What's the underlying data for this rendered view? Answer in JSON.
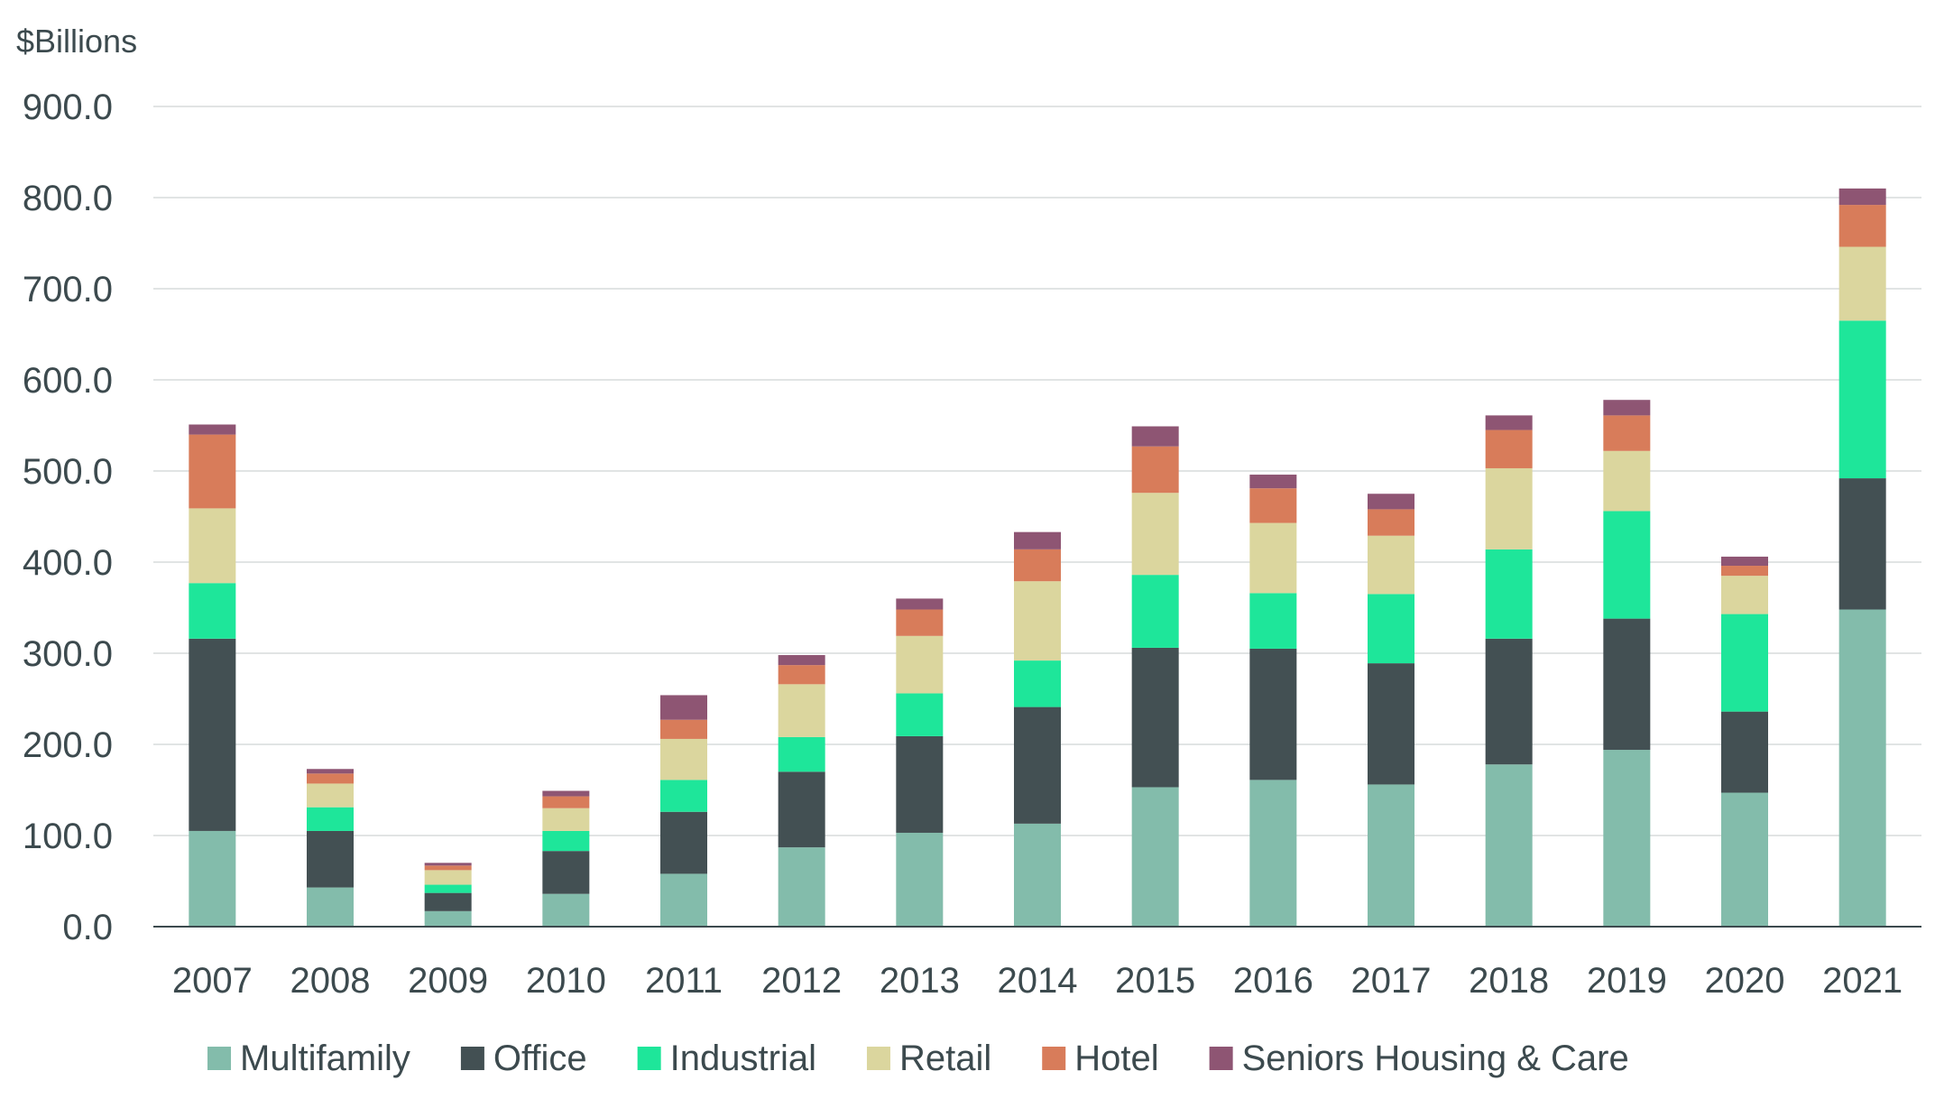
{
  "chart_data": {
    "type": "bar",
    "stacked": true,
    "title": "",
    "xlabel": "",
    "ylabel": "$Billions",
    "ylim": [
      0,
      900
    ],
    "yticks": [
      "0.0",
      "100.0",
      "200.0",
      "300.0",
      "400.0",
      "500.0",
      "600.0",
      "700.0",
      "800.0",
      "900.0"
    ],
    "grid": true,
    "legend_position": "bottom",
    "categories": [
      "2007",
      "2008",
      "2009",
      "2010",
      "2011",
      "2012",
      "2013",
      "2014",
      "2015",
      "2016",
      "2017",
      "2018",
      "2019",
      "2020",
      "2021"
    ],
    "series": [
      {
        "name": "Multifamily",
        "color": "#83bcab",
        "values": [
          105,
          43,
          17,
          36,
          58,
          87,
          103,
          113,
          153,
          161,
          156,
          178,
          194,
          147,
          348
        ]
      },
      {
        "name": "Office",
        "color": "#435053",
        "values": [
          211,
          62,
          20,
          47,
          68,
          83,
          106,
          128,
          153,
          144,
          133,
          138,
          144,
          89,
          144
        ]
      },
      {
        "name": "Industrial",
        "color": "#1ee69a",
        "values": [
          61,
          26,
          9,
          22,
          35,
          38,
          47,
          51,
          80,
          61,
          76,
          98,
          118,
          107,
          173
        ]
      },
      {
        "name": "Retail",
        "color": "#dbd69e",
        "values": [
          82,
          26,
          16,
          25,
          45,
          58,
          63,
          87,
          90,
          77,
          64,
          89,
          66,
          42,
          81
        ]
      },
      {
        "name": "Hotel",
        "color": "#d87c5a",
        "values": [
          81,
          11,
          5,
          13,
          21,
          21,
          29,
          35,
          51,
          38,
          29,
          42,
          39,
          11,
          46
        ]
      },
      {
        "name": "Seniors Housing & Care",
        "color": "#8e5573",
        "values": [
          11,
          5,
          3,
          6,
          27,
          11,
          12,
          19,
          22,
          15,
          17,
          16,
          17,
          10,
          18
        ]
      }
    ]
  },
  "colors": {
    "text": "#3c4a4e",
    "grid": "#e1e4e4",
    "axis": "#3c4a4e"
  }
}
